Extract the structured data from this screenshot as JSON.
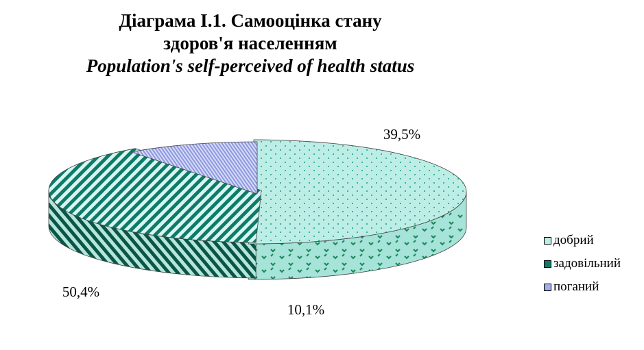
{
  "title": {
    "line1": "Діаграма І.1. Самооцінка стану",
    "line2": "здоров'я населенням",
    "line3": "Population's self-perceived of health status"
  },
  "chart_data": {
    "type": "pie",
    "style": "3d-exploded",
    "categories": [
      "добрий",
      "задовільний",
      "поганий"
    ],
    "values": [
      50.4,
      39.5,
      10.1
    ],
    "data_labels": [
      "50,4%",
      "39,5%",
      "10,1%"
    ],
    "colors": [
      "#bdeee6",
      "#0d7a6a",
      "#a3aee8"
    ],
    "legend_position": "right"
  }
}
